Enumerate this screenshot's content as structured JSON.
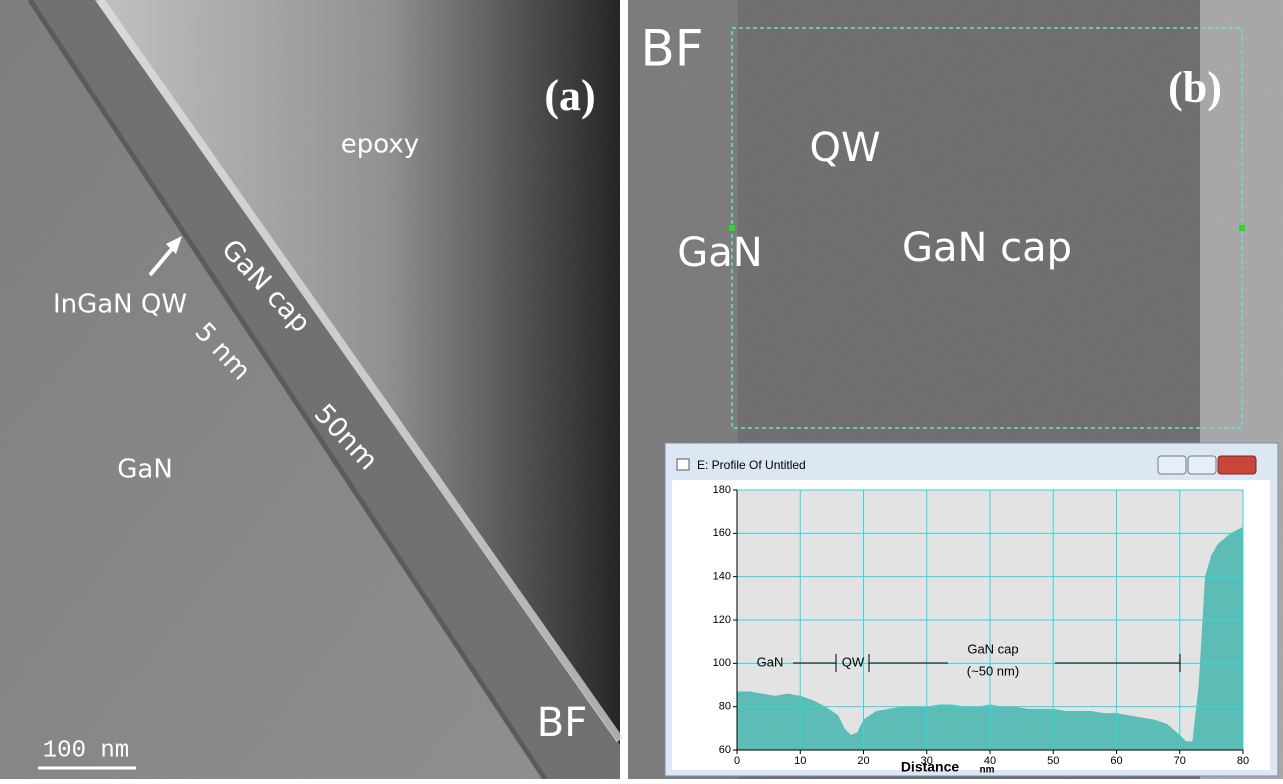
{
  "panel_a": {
    "label": "(a)",
    "epoxy": "epoxy",
    "gan_cap": "GaN cap",
    "ingan_qw": "InGaN QW",
    "qw_thickness": "5 nm",
    "cap_thickness": "50nm",
    "gan": "GaN",
    "mode": "BF",
    "scale_bar": "100 nm"
  },
  "panel_b": {
    "label": "(b)",
    "mode": "BF",
    "qw": "QW",
    "gan": "GaN",
    "gan_cap": "GaN cap"
  },
  "window": {
    "title": "E: Profile Of Untitled"
  },
  "chart_data": {
    "type": "area",
    "xlabel": "Distance",
    "xunit": "nm",
    "x": [
      0,
      2,
      4,
      6,
      8,
      10,
      12,
      14,
      16,
      17,
      18,
      19,
      20,
      22,
      24,
      26,
      28,
      30,
      32,
      34,
      36,
      38,
      40,
      42,
      44,
      46,
      48,
      50,
      52,
      54,
      56,
      58,
      60,
      62,
      64,
      66,
      68,
      70,
      71,
      72,
      73,
      74,
      75,
      76,
      78,
      80
    ],
    "values": [
      87,
      87,
      86,
      85,
      86,
      85,
      83,
      80,
      76,
      70,
      67,
      68,
      74,
      78,
      79,
      80,
      80,
      80,
      81,
      81,
      80,
      80,
      81,
      80,
      80,
      79,
      79,
      79,
      78,
      78,
      78,
      77,
      77,
      76,
      75,
      74,
      72,
      67,
      64,
      64,
      90,
      140,
      150,
      155,
      160,
      163
    ],
    "color": "#5bbdb5",
    "xlim": [
      0,
      80
    ],
    "xticks": [
      0,
      10,
      20,
      30,
      40,
      50,
      60,
      70,
      80
    ],
    "ylim": [
      60,
      180
    ],
    "yticks": [
      60,
      80,
      100,
      120,
      140,
      160,
      180
    ],
    "grid": true,
    "annotations": [
      "GaN",
      "QW",
      "GaN cap",
      "(~50 nm)"
    ]
  }
}
